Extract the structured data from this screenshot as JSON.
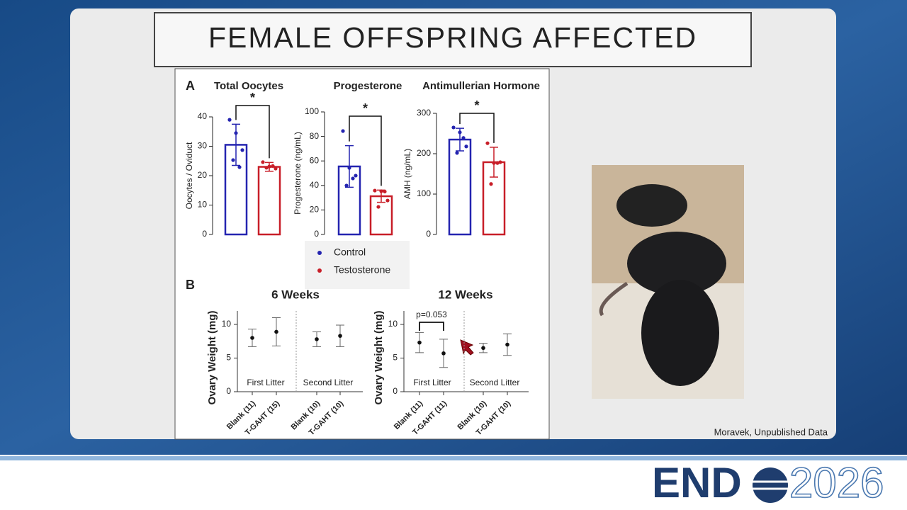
{
  "slide": {
    "title": "FEMALE OFFSPRING AFFECTED",
    "panel_a": "A",
    "panel_b": "B",
    "credit": "Moravek, Unpublished Data"
  },
  "logo": {
    "brand": "END",
    "year": "2026"
  },
  "legend": [
    {
      "name": "Control",
      "color": "#2424b0"
    },
    {
      "name": "Testosterone",
      "color": "#c81e28"
    }
  ],
  "chart_data": [
    {
      "type": "bar",
      "title": "Total Oocytes",
      "y_label": "Oocytes / Oviduct",
      "annotation": "*",
      "values": [
        30.5,
        23
      ],
      "errors": [
        7,
        1.5
      ],
      "points": [
        [
          39,
          34.5,
          28.7,
          25.3,
          22.9
        ],
        [
          24.6,
          23.1,
          22.4,
          22.7,
          23.3
        ]
      ],
      "ylim": [
        0,
        40
      ],
      "yticks": [
        0,
        10,
        20,
        30,
        40
      ]
    },
    {
      "type": "bar",
      "title": "Progesterone",
      "y_label": "Progesterone (ng/mL)",
      "annotation": "*",
      "values": [
        55.5,
        31.2
      ],
      "errors": [
        17,
        5
      ],
      "points": [
        [
          84.4,
          54.3,
          48,
          39.9,
          45.7
        ],
        [
          35.8,
          35.3,
          27.7,
          22.5,
          35
        ]
      ],
      "ylim": [
        0,
        100
      ],
      "yticks": [
        0,
        20,
        40,
        60,
        80,
        100
      ]
    },
    {
      "type": "bar",
      "title": "Antimullerian Hormone",
      "y_label": "AMH (ng/mL)",
      "annotation": "*",
      "values": [
        235,
        179
      ],
      "errors": [
        28,
        37
      ],
      "points": [
        [
          265,
          253,
          218,
          202,
          239
        ],
        [
          226,
          177,
          179,
          125,
          177
        ]
      ],
      "ylim": [
        0,
        300
      ],
      "yticks": [
        0,
        100,
        200,
        300
      ]
    },
    {
      "type": "dot-whisker",
      "title": "6 Weeks",
      "y_label": "Ovary Weight (mg)",
      "categories": [
        "Blank (11)",
        "T-GAHT (15)",
        "Blank (10)",
        "T-GAHT (10)"
      ],
      "groups": [
        "First Litter",
        "Second Litter"
      ],
      "values": [
        8.0,
        8.9,
        7.8,
        8.3
      ],
      "errors": [
        1.3,
        2.1,
        1.1,
        1.6
      ],
      "ylim": [
        0,
        12
      ],
      "yticks": [
        0,
        5,
        10
      ],
      "color": "#111111"
    },
    {
      "type": "dot-whisker",
      "title": "12 Weeks",
      "y_label": "Ovary Weight (mg)",
      "annotation": "p=0.053",
      "categories": [
        "Blank (11)",
        "T-GAHT (11)",
        "Blank (10)",
        "T-GAHT (10)"
      ],
      "groups": [
        "First Litter",
        "Second Litter"
      ],
      "values": [
        7.3,
        5.7,
        6.5,
        7.0
      ],
      "errors": [
        1.5,
        2.1,
        0.7,
        1.6
      ],
      "ylim": [
        0,
        12
      ],
      "yticks": [
        0,
        5,
        10
      ],
      "color": "#111111"
    }
  ]
}
